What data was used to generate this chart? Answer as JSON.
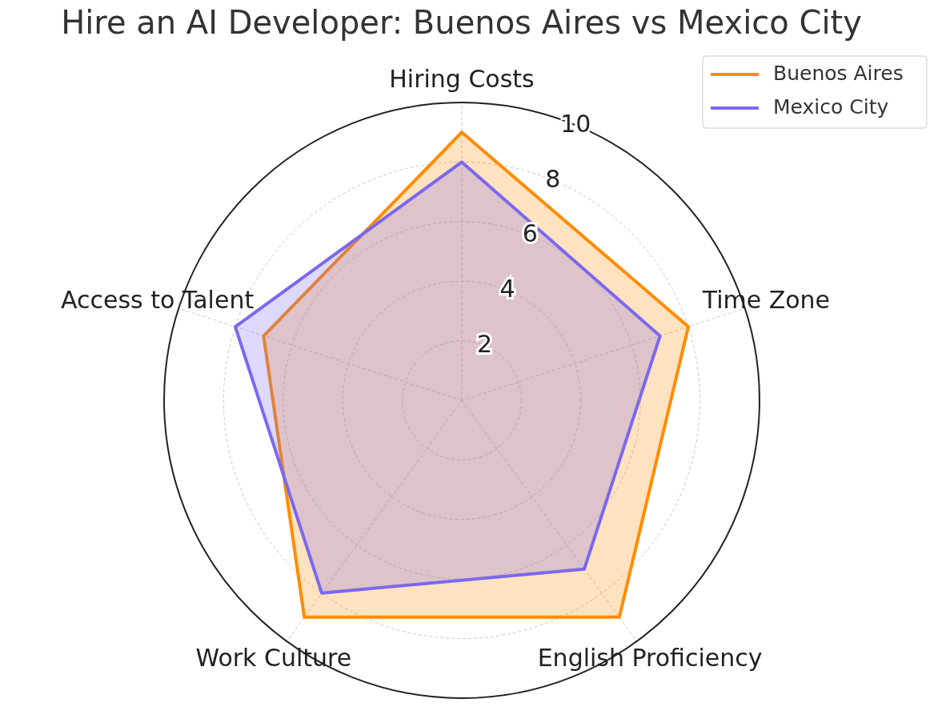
{
  "chart_data": {
    "type": "radar",
    "title": "Hire an AI Developer: Buenos Aires vs Mexico City",
    "categories": [
      "Hiring Costs",
      "Time Zone",
      "English Proficiency",
      "Work Culture",
      "Access to Talent"
    ],
    "series": [
      {
        "name": "Buenos Aires",
        "color": "#ff8c00",
        "values": [
          9,
          8,
          9,
          9,
          7
        ]
      },
      {
        "name": "Mexico City",
        "color": "#7b68ee",
        "values": [
          8,
          7,
          7,
          8,
          8
        ]
      }
    ],
    "ylim": [
      0,
      10
    ],
    "yticks": [
      2,
      4,
      6,
      8,
      10
    ],
    "grid": true,
    "legend": "top right",
    "line_style": "solid",
    "marker": "none"
  }
}
